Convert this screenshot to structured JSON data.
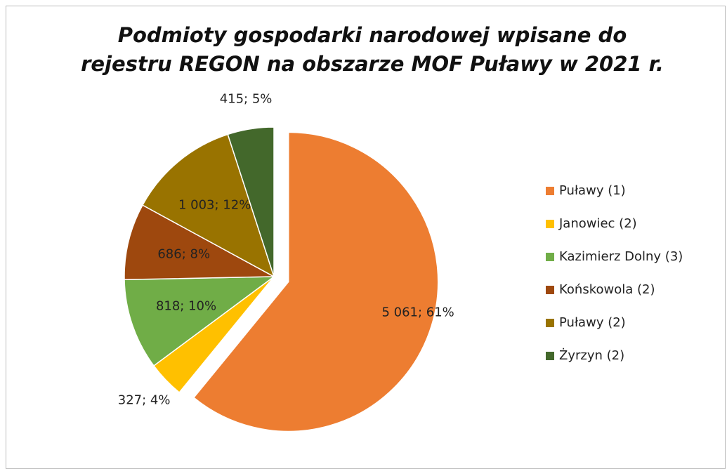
{
  "chart_data": {
    "type": "pie",
    "title": "Podmioty gospodarki narodowej wpisane do rejestru REGON na obszarze MOF Puławy w 2021 r.",
    "categories": [
      "Puławy (1)",
      "Janowiec (2)",
      "Kazimierz Dolny (3)",
      "Końskowola (2)",
      "Puławy (2)",
      "Żyrzyn (2)"
    ],
    "values": [
      5061,
      327,
      818,
      686,
      1003,
      415
    ],
    "value_labels": [
      "5 061; 61%",
      "327; 4%",
      "818; 10%",
      "686; 8%",
      "1 003; 12%",
      "415; 5%"
    ],
    "colors": [
      "#ED7D31",
      "#FFC000",
      "#70AD47",
      "#9E480E",
      "#997300",
      "#43682B"
    ],
    "legend": "right"
  }
}
